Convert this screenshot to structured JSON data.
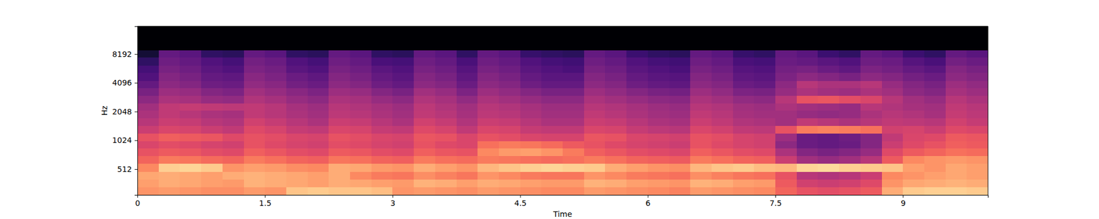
{
  "chart_data": {
    "type": "heatmap",
    "x_label": "Time",
    "y_label": "Hz",
    "log": "y",
    "color": "magma",
    "xlim": [
      0,
      10
    ],
    "ylim": [
      275,
      16000
    ],
    "xticks": [
      0,
      1.5,
      3,
      4.5,
      6,
      7.5,
      9
    ],
    "yticks": [
      512,
      1024,
      2048,
      4096,
      8192
    ],
    "zlim": [
      -80,
      0
    ],
    "x": [
      0,
      0.25,
      0.5,
      0.75,
      1,
      1.25,
      1.5,
      1.75,
      2,
      2.25,
      2.5,
      2.75,
      3,
      3.25,
      3.5,
      3.75,
      4,
      4.25,
      4.5,
      4.75,
      5,
      5.25,
      5.5,
      5.75,
      6,
      6.25,
      6.5,
      6.75,
      7,
      7.25,
      7.5,
      7.75,
      8,
      8.25,
      8.5,
      8.75,
      9,
      9.25,
      9.5,
      9.75,
      10
    ],
    "y": [
      275,
      330,
      400,
      480,
      580,
      700,
      840,
      1000,
      1200,
      1450,
      1750,
      2100,
      2500,
      3000,
      3600,
      4300,
      5200,
      6200,
      7500,
      9000,
      16000
    ],
    "z": [
      [
        -18,
        -17,
        -18,
        -19,
        -19,
        -17,
        -18,
        -10,
        -9,
        -10,
        -10,
        -11,
        -18,
        -17,
        -18,
        -19,
        -17,
        -18,
        -19,
        -20,
        -20,
        -17,
        -18,
        -19,
        -20,
        -21,
        -17,
        -18,
        -19,
        -20,
        -26,
        -30,
        -31,
        -30,
        -28,
        -14,
        -9,
        -8,
        -8,
        -9
      ],
      [
        -16,
        -14,
        -15,
        -16,
        -17,
        -13,
        -14,
        -15,
        -16,
        -14,
        -15,
        -16,
        -17,
        -13,
        -14,
        -16,
        -14,
        -15,
        -16,
        -17,
        -17,
        -13,
        -14,
        -16,
        -17,
        -18,
        -13,
        -14,
        -16,
        -17,
        -28,
        -35,
        -36,
        -35,
        -32,
        -18,
        -15,
        -14,
        -13,
        -14
      ],
      [
        -15,
        -14,
        -15,
        -16,
        -14,
        -13,
        -14,
        -15,
        -16,
        -14,
        -20,
        -22,
        -23,
        -19,
        -21,
        -23,
        -18,
        -20,
        -22,
        -23,
        -23,
        -18,
        -20,
        -22,
        -23,
        -24,
        -19,
        -21,
        -23,
        -24,
        -30,
        -40,
        -41,
        -40,
        -36,
        -20,
        -18,
        -16,
        -15,
        -16
      ],
      [
        -20,
        -8,
        -7,
        -9,
        -18,
        -16,
        -17,
        -19,
        -20,
        -14,
        -15,
        -17,
        -18,
        -14,
        -16,
        -18,
        -12,
        -10,
        -8,
        -7,
        -8,
        -9,
        -14,
        -16,
        -18,
        -19,
        -12,
        -10,
        -9,
        -11,
        -12,
        -7,
        -6,
        -8,
        -9,
        -10,
        -16,
        -18,
        -15,
        -16
      ],
      [
        -26,
        -22,
        -23,
        -25,
        -26,
        -22,
        -24,
        -26,
        -27,
        -23,
        -24,
        -26,
        -27,
        -22,
        -24,
        -25,
        -22,
        -23,
        -24,
        -25,
        -24,
        -22,
        -24,
        -26,
        -27,
        -28,
        -22,
        -24,
        -26,
        -27,
        -36,
        -44,
        -46,
        -44,
        -40,
        -28,
        -20,
        -18,
        -17,
        -18
      ],
      [
        -30,
        -28,
        -29,
        -31,
        -32,
        -27,
        -29,
        -31,
        -32,
        -28,
        -29,
        -31,
        -32,
        -27,
        -29,
        -30,
        -20,
        -17,
        -16,
        -18,
        -22,
        -27,
        -29,
        -31,
        -32,
        -33,
        -27,
        -29,
        -31,
        -32,
        -42,
        -50,
        -52,
        -50,
        -46,
        -32,
        -28,
        -26,
        -24,
        -25
      ],
      [
        -33,
        -31,
        -32,
        -34,
        -35,
        -30,
        -32,
        -34,
        -35,
        -31,
        -32,
        -34,
        -35,
        -30,
        -32,
        -33,
        -24,
        -22,
        -23,
        -25,
        -28,
        -30,
        -32,
        -34,
        -35,
        -36,
        -30,
        -32,
        -34,
        -35,
        -48,
        -55,
        -56,
        -55,
        -50,
        -36,
        -32,
        -30,
        -27,
        -28
      ],
      [
        -30,
        -27,
        -28,
        -29,
        -32,
        -30,
        -31,
        -33,
        -34,
        -30,
        -31,
        -33,
        -34,
        -29,
        -30,
        -33,
        -30,
        -31,
        -33,
        -34,
        -34,
        -29,
        -30,
        -33,
        -34,
        -35,
        -30,
        -31,
        -34,
        -35,
        -45,
        -55,
        -56,
        -54,
        -50,
        -38,
        -33,
        -32,
        -28,
        -29
      ],
      [
        -36,
        -33,
        -34,
        -36,
        -38,
        -32,
        -34,
        -37,
        -38,
        -33,
        -34,
        -37,
        -38,
        -32,
        -34,
        -38,
        -33,
        -34,
        -37,
        -38,
        -38,
        -33,
        -34,
        -37,
        -39,
        -40,
        -33,
        -35,
        -38,
        -39,
        -30,
        -22,
        -21,
        -22,
        -24,
        -35,
        -34,
        -36,
        -32,
        -33
      ],
      [
        -40,
        -36,
        -37,
        -40,
        -41,
        -35,
        -37,
        -40,
        -42,
        -36,
        -37,
        -40,
        -42,
        -35,
        -37,
        -41,
        -36,
        -37,
        -40,
        -42,
        -42,
        -36,
        -37,
        -40,
        -42,
        -43,
        -36,
        -38,
        -41,
        -42,
        -44,
        -38,
        -40,
        -42,
        -40,
        -38,
        -39,
        -40,
        -35,
        -37
      ],
      [
        -42,
        -38,
        -40,
        -42,
        -43,
        -38,
        -40,
        -42,
        -44,
        -39,
        -40,
        -42,
        -44,
        -38,
        -40,
        -43,
        -39,
        -40,
        -42,
        -44,
        -44,
        -38,
        -40,
        -42,
        -44,
        -45,
        -38,
        -40,
        -43,
        -44,
        -44,
        -46,
        -47,
        -46,
        -42,
        -40,
        -41,
        -43,
        -37,
        -39
      ],
      [
        -44,
        -38,
        -37,
        -38,
        -39,
        -38,
        -40,
        -43,
        -45,
        -40,
        -41,
        -43,
        -45,
        -39,
        -41,
        -44,
        -40,
        -41,
        -43,
        -45,
        -45,
        -40,
        -41,
        -43,
        -45,
        -46,
        -40,
        -41,
        -44,
        -45,
        -42,
        -44,
        -45,
        -46,
        -40,
        -41,
        -43,
        -44,
        -38,
        -40
      ],
      [
        -48,
        -42,
        -43,
        -46,
        -47,
        -41,
        -43,
        -46,
        -48,
        -42,
        -43,
        -46,
        -48,
        -41,
        -43,
        -47,
        -42,
        -44,
        -46,
        -48,
        -48,
        -42,
        -44,
        -46,
        -48,
        -49,
        -42,
        -44,
        -47,
        -48,
        -40,
        -30,
        -29,
        -31,
        -33,
        -40,
        -44,
        -46,
        -40,
        -42
      ],
      [
        -52,
        -45,
        -46,
        -50,
        -51,
        -44,
        -46,
        -49,
        -51,
        -45,
        -46,
        -50,
        -52,
        -44,
        -46,
        -51,
        -45,
        -47,
        -50,
        -52,
        -52,
        -45,
        -47,
        -50,
        -52,
        -53,
        -45,
        -47,
        -51,
        -52,
        -46,
        -42,
        -44,
        -45,
        -42,
        -44,
        -48,
        -50,
        -43,
        -45
      ],
      [
        -56,
        -48,
        -50,
        -54,
        -55,
        -47,
        -49,
        -53,
        -55,
        -48,
        -50,
        -54,
        -56,
        -48,
        -50,
        -55,
        -48,
        -50,
        -54,
        -56,
        -56,
        -48,
        -50,
        -54,
        -56,
        -57,
        -48,
        -50,
        -55,
        -56,
        -48,
        -40,
        -42,
        -42,
        -40,
        -46,
        -50,
        -52,
        -45,
        -47
      ],
      [
        -60,
        -50,
        -52,
        -56,
        -57,
        -49,
        -51,
        -55,
        -57,
        -50,
        -52,
        -56,
        -58,
        -50,
        -52,
        -57,
        -50,
        -52,
        -56,
        -58,
        -58,
        -50,
        -52,
        -56,
        -58,
        -59,
        -50,
        -52,
        -57,
        -58,
        -51,
        -48,
        -50,
        -52,
        -48,
        -50,
        -53,
        -55,
        -48,
        -50
      ],
      [
        -62,
        -52,
        -54,
        -58,
        -60,
        -51,
        -53,
        -58,
        -60,
        -52,
        -54,
        -58,
        -60,
        -52,
        -54,
        -59,
        -52,
        -54,
        -58,
        -60,
        -61,
        -52,
        -54,
        -58,
        -60,
        -61,
        -52,
        -54,
        -59,
        -60,
        -53,
        -52,
        -55,
        -57,
        -51,
        -53,
        -56,
        -58,
        -50,
        -52
      ],
      [
        -66,
        -54,
        -56,
        -60,
        -62,
        -53,
        -55,
        -60,
        -62,
        -54,
        -56,
        -61,
        -62,
        -54,
        -56,
        -61,
        -54,
        -56,
        -60,
        -62,
        -63,
        -54,
        -56,
        -60,
        -62,
        -63,
        -54,
        -56,
        -61,
        -62,
        -55,
        -56,
        -58,
        -60,
        -54,
        -55,
        -59,
        -61,
        -53,
        -55
      ],
      [
        -72,
        -56,
        -58,
        -66,
        -67,
        -56,
        -58,
        -66,
        -67,
        -56,
        -58,
        -66,
        -67,
        -56,
        -58,
        -66,
        -56,
        -58,
        -65,
        -66,
        -67,
        -56,
        -58,
        -64,
        -66,
        -67,
        -56,
        -58,
        -65,
        -66,
        -56,
        -58,
        -64,
        -66,
        -56,
        -58,
        -64,
        -66,
        -56,
        -58
      ],
      [
        -80,
        -80,
        -80,
        -80,
        -80,
        -80,
        -80,
        -80,
        -80,
        -80,
        -80,
        -80,
        -80,
        -80,
        -80,
        -80,
        -80,
        -80,
        -80,
        -80,
        -80,
        -80,
        -80,
        -80,
        -80,
        -80,
        -80,
        -80,
        -80,
        -80,
        -80,
        -80,
        -80,
        -80,
        -80,
        -80,
        -80,
        -80,
        -80,
        -80
      ]
    ]
  }
}
